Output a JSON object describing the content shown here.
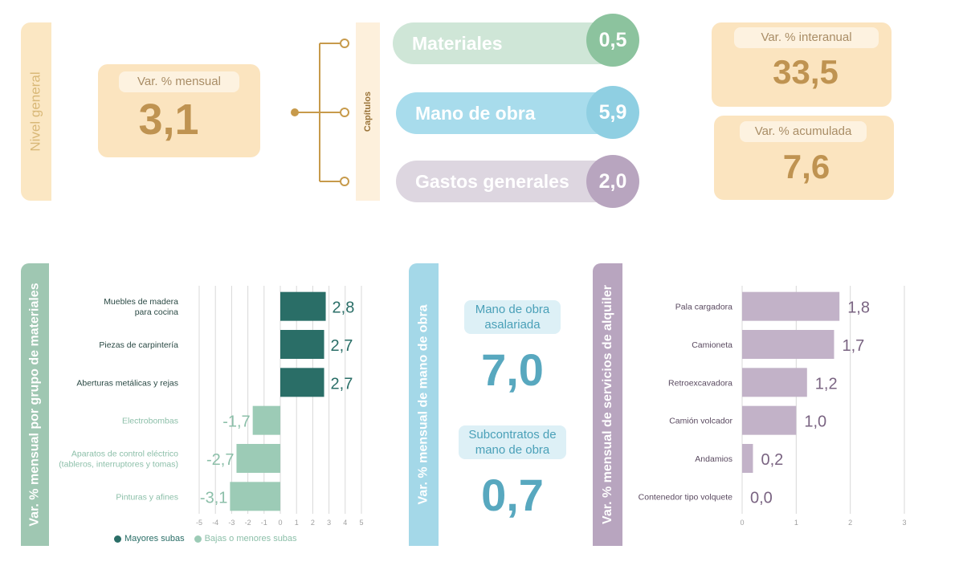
{
  "nivel_general": {
    "tab_label": "Nivel general",
    "mensual_label": "Var. % mensual",
    "mensual_value": "3,1"
  },
  "capitulos": {
    "tab_label": "Capítulos",
    "items": [
      {
        "label": "Materiales",
        "value": "0,5",
        "bar_color": "#cfe6d7",
        "circle_color": "#8cc39e"
      },
      {
        "label": "Mano de obra",
        "value": "5,9",
        "bar_color": "#a8dcec",
        "circle_color": "#8fcfe2"
      },
      {
        "label": "Gastos generales",
        "value": "2,0",
        "bar_color": "#ddd6e0",
        "circle_color": "#b8a5bf"
      }
    ]
  },
  "interanual": {
    "label": "Var. % interanual",
    "value": "33,5"
  },
  "acumulada": {
    "label": "Var. % acumulada",
    "value": "7,6"
  },
  "materiales_chart": {
    "tab_label": "Var. % mensual por grupo de materiales",
    "legend": {
      "mayores": "Mayores subas",
      "bajas": "Bajas o menores subas"
    },
    "colors": {
      "mayores": "#2a6e67",
      "bajas": "#9ccbb6",
      "mayores_text": "#2a6e67",
      "bajas_text": "#8cbfa9"
    }
  },
  "mano_obra": {
    "tab_label": "Var. % mensual de mano de obra",
    "asalariada_label_1": "Mano de obra",
    "asalariada_label_2": "asalariada",
    "asalariada_value": "7,0",
    "subcontratos_label_1": "Subcontratos de",
    "subcontratos_label_2": "mano de obra",
    "subcontratos_value": "0,7"
  },
  "alquiler_chart": {
    "tab_label": "Var. % mensual de servicios de alquiler"
  },
  "chart_data": [
    {
      "type": "bar",
      "orientation": "horizontal",
      "categories": [
        [
          "Muebles de madera",
          "para cocina"
        ],
        [
          "Piezas de carpintería"
        ],
        [
          "Aberturas metálicas y rejas"
        ],
        [
          "Electrobombas"
        ],
        [
          "Aparatos de control eléctrico",
          "(tableros, interruptores y tomas)"
        ],
        [
          "Pinturas y afines"
        ]
      ],
      "values": [
        2.8,
        2.7,
        2.7,
        -1.7,
        -2.7,
        -3.1
      ],
      "value_labels": [
        "2,8",
        "2,7",
        "2,7",
        "-1,7",
        "-2,7",
        "-3,1"
      ],
      "groups": [
        "mayores",
        "mayores",
        "mayores",
        "bajas",
        "bajas",
        "bajas"
      ],
      "xlim": [
        -5,
        5
      ],
      "xticks": [
        "-5",
        "-4",
        "-3",
        "-2",
        "-1",
        "0",
        "1",
        "2",
        "3",
        "4",
        "5"
      ],
      "grid": true,
      "legend": "bottom"
    },
    {
      "type": "bar",
      "orientation": "horizontal",
      "categories": [
        "Pala cargadora",
        "Camioneta",
        "Retroexcavadora",
        "Camión volcador",
        "Andamios",
        "Contenedor tipo volquete"
      ],
      "values": [
        1.8,
        1.7,
        1.2,
        1.0,
        0.2,
        0.0
      ],
      "value_labels": [
        "1,8",
        "1,7",
        "1,2",
        "1,0",
        "0,2",
        "0,0"
      ],
      "xlim": [
        0,
        3
      ],
      "xticks": [
        "0",
        "1",
        "2",
        "3"
      ],
      "grid": true,
      "color": "#c2b2c8",
      "label_color": "#7a6482"
    }
  ]
}
